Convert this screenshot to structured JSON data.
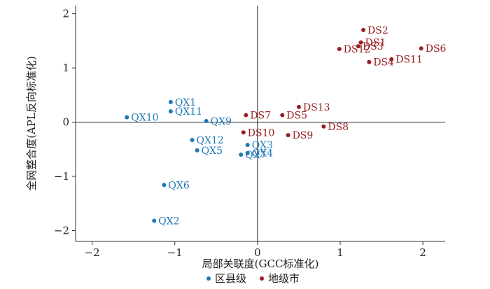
{
  "chart_data": {
    "type": "scatter",
    "title": "",
    "xlabel": "局部关联度(GCC标准化)",
    "ylabel": "全网整合度(APL反向标准化)",
    "xlim": [
      -2.2,
      2.27
    ],
    "ylim": [
      -2.2,
      2.15
    ],
    "x_ticks": [
      -2,
      -1,
      0,
      1,
      2
    ],
    "y_ticks": [
      -2,
      -1,
      0,
      1,
      2
    ],
    "x_tick_labels": [
      "−2",
      "−1",
      "0",
      "1",
      "2"
    ],
    "y_tick_labels": [
      "−2",
      "−1",
      "0",
      "1",
      "2"
    ],
    "grid": false,
    "reference_lines": {
      "x": 0,
      "y": 0
    },
    "legend_position": "bottom-center",
    "series": [
      {
        "name": "区县级",
        "color": "#1f78b4",
        "points": [
          {
            "label": "QX1",
            "x": -1.05,
            "y": 0.37
          },
          {
            "label": "QX2",
            "x": -1.25,
            "y": -1.82
          },
          {
            "label": "QX3",
            "x": -0.12,
            "y": -0.42
          },
          {
            "label": "QX4",
            "x": -0.12,
            "y": -0.57
          },
          {
            "label": "QX5",
            "x": -0.73,
            "y": -0.52
          },
          {
            "label": "QX6",
            "x": -1.13,
            "y": -1.16
          },
          {
            "label": "QX7",
            "x": -0.2,
            "y": -0.6
          },
          {
            "label": "QX9",
            "x": -0.62,
            "y": 0.02
          },
          {
            "label": "QX10",
            "x": -1.58,
            "y": 0.09
          },
          {
            "label": "QX11",
            "x": -1.05,
            "y": 0.2
          },
          {
            "label": "QX12",
            "x": -0.79,
            "y": -0.33
          }
        ]
      },
      {
        "name": "地级市",
        "color": "#9b1c22",
        "points": [
          {
            "label": "DS1",
            "x": 1.25,
            "y": 1.47
          },
          {
            "label": "DS2",
            "x": 1.28,
            "y": 1.7
          },
          {
            "label": "DS3",
            "x": 1.22,
            "y": 1.4
          },
          {
            "label": "DS4",
            "x": 1.35,
            "y": 1.11
          },
          {
            "label": "DS5",
            "x": 0.3,
            "y": 0.13
          },
          {
            "label": "DS6",
            "x": 1.98,
            "y": 1.36
          },
          {
            "label": "DS7",
            "x": -0.14,
            "y": 0.13
          },
          {
            "label": "DS8",
            "x": 0.8,
            "y": -0.08
          },
          {
            "label": "DS9",
            "x": 0.37,
            "y": -0.24
          },
          {
            "label": "DS10",
            "x": -0.17,
            "y": -0.19
          },
          {
            "label": "DS11",
            "x": 1.62,
            "y": 1.16
          },
          {
            "label": "DS12",
            "x": 0.99,
            "y": 1.35
          },
          {
            "label": "DS13",
            "x": 0.5,
            "y": 0.28
          }
        ]
      }
    ]
  }
}
